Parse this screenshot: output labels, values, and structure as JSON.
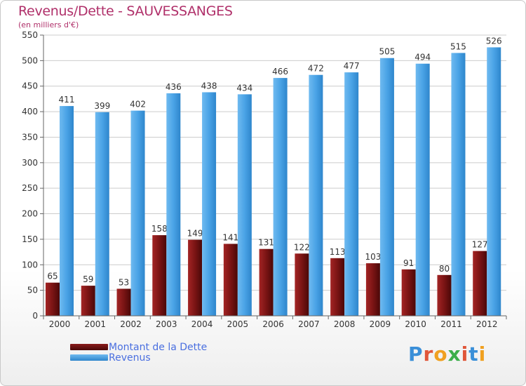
{
  "chart_data": {
    "type": "bar",
    "title": "Revenus/Dette - SAUVESSANGES",
    "subtitle": "(en milliers d'€)",
    "categories": [
      "2000",
      "2001",
      "2002",
      "2003",
      "2004",
      "2005",
      "2006",
      "2007",
      "2008",
      "2009",
      "2010",
      "2011",
      "2012"
    ],
    "series": [
      {
        "name": "Montant de la Dette",
        "color": "#7a1212",
        "values": [
          65,
          59,
          53,
          158,
          149,
          141,
          131,
          122,
          113,
          103,
          91,
          80,
          127
        ]
      },
      {
        "name": "Revenus",
        "color": "#4aa3e6",
        "values": [
          411,
          399,
          402,
          436,
          438,
          434,
          466,
          472,
          477,
          505,
          494,
          515,
          526
        ]
      }
    ],
    "ylim": [
      0,
      550
    ],
    "yticks": [
      0,
      50,
      100,
      150,
      200,
      250,
      300,
      350,
      400,
      450,
      500,
      550
    ],
    "grid": true,
    "legend_position": "bottom-left"
  },
  "logo": {
    "text": "Proxiti"
  }
}
